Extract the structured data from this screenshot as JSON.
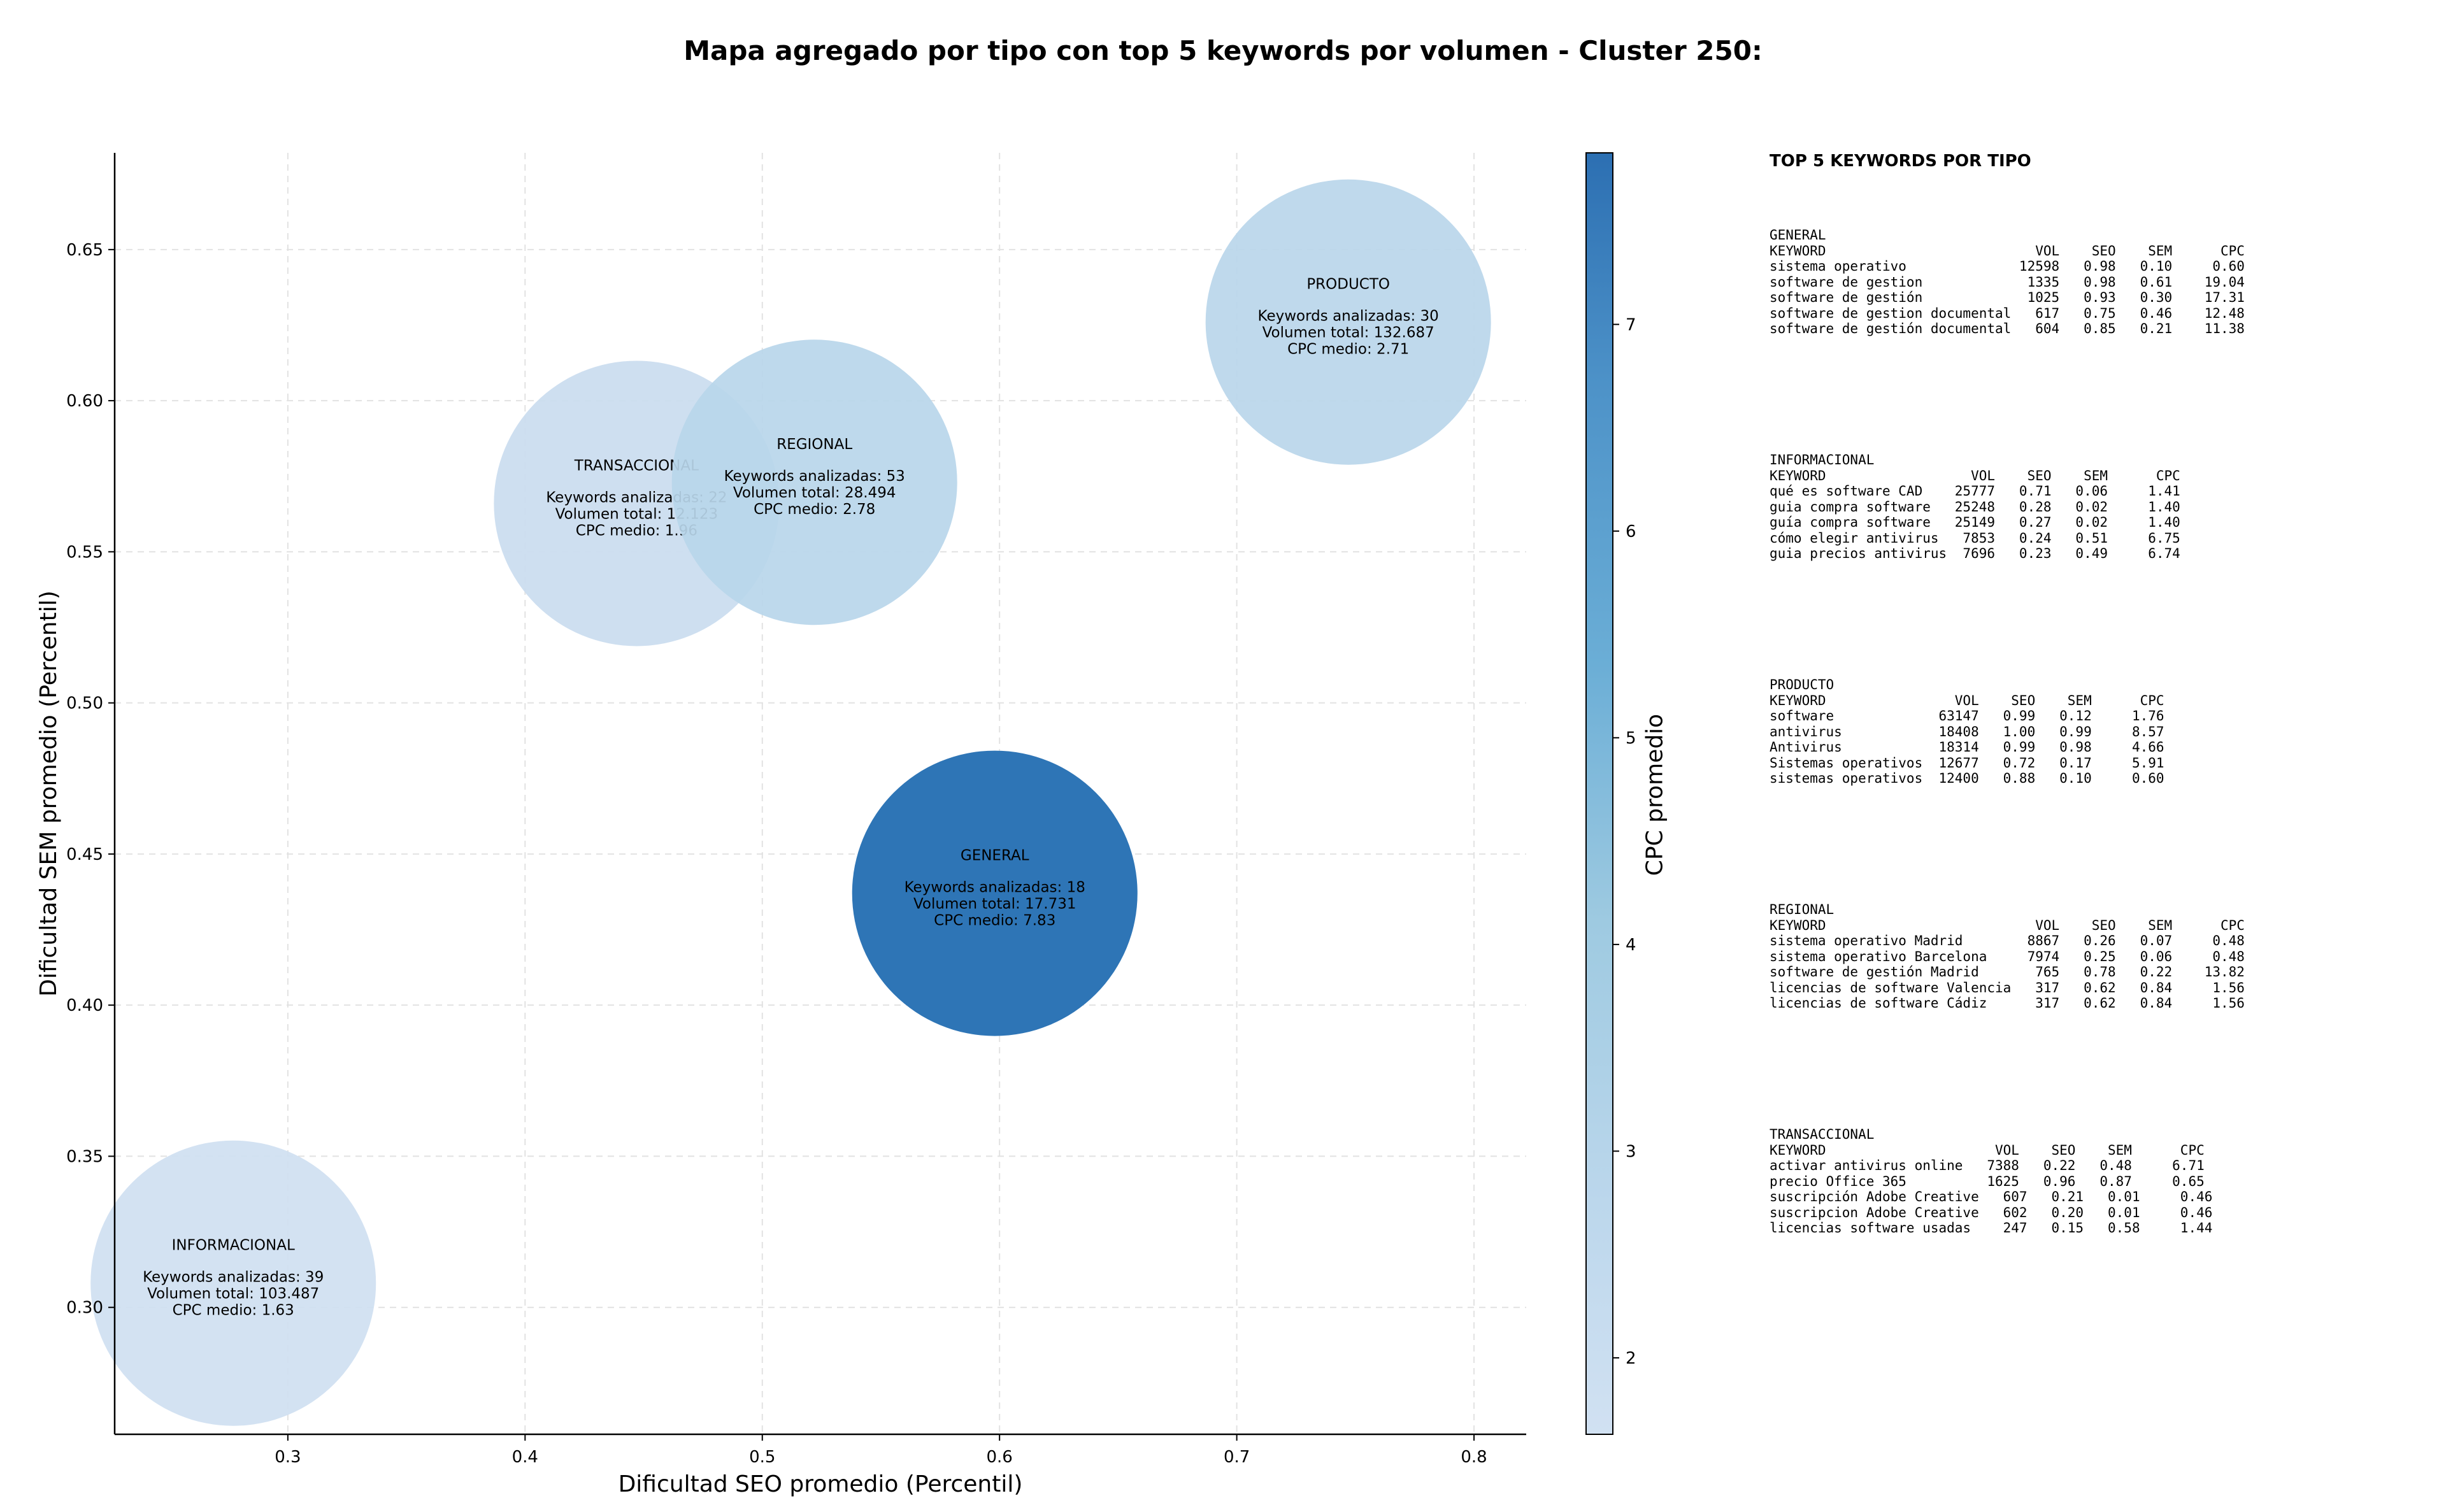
{
  "title": "Mapa agregado por tipo con top 5 keywords por volumen - Cluster 250:",
  "chart_data": {
    "type": "scatter",
    "subtype": "bubble",
    "xlabel": "Dificultad SEO promedio (Percentil)",
    "ylabel": "Dificultad SEM promedio (Percentil)",
    "xlim": [
      0.227,
      0.822
    ],
    "ylim": [
      0.258,
      0.682
    ],
    "xticks": [
      "0.3",
      "0.4",
      "0.5",
      "0.6",
      "0.7",
      "0.8"
    ],
    "yticks": [
      "0.30",
      "0.35",
      "0.40",
      "0.45",
      "0.50",
      "0.55",
      "0.60",
      "0.65"
    ],
    "grid": true,
    "colorbar": {
      "label": "CPC promedio",
      "ticks": [
        "2",
        "3",
        "4",
        "5",
        "6",
        "7"
      ],
      "range": [
        1.63,
        7.83
      ]
    },
    "points": [
      {
        "name": "INFORMACIONAL",
        "x": 0.277,
        "y": 0.308,
        "keywords": "Keywords analizadas: 39",
        "volume": "Volumen total: 103.487",
        "cpc_text": "CPC medio: 1.63",
        "cpc": 1.63,
        "color": "#cfe0f1"
      },
      {
        "name": "TRANSACCIONAL",
        "x": 0.447,
        "y": 0.566,
        "keywords": "Keywords analizadas: 22",
        "volume": "Volumen total: 12.123",
        "cpc_text": "CPC medio: 1.96",
        "cpc": 1.96,
        "color": "#cadcef"
      },
      {
        "name": "REGIONAL",
        "x": 0.522,
        "y": 0.573,
        "keywords": "Keywords analizadas: 53",
        "volume": "Volumen total: 28.494",
        "cpc_text": "CPC medio: 2.78",
        "cpc": 2.78,
        "color": "#b9d6ea"
      },
      {
        "name": "PRODUCTO",
        "x": 0.747,
        "y": 0.626,
        "keywords": "Keywords analizadas: 30",
        "volume": "Volumen total: 132.687",
        "cpc_text": "CPC medio: 2.71",
        "cpc": 2.71,
        "color": "#bad6ea"
      },
      {
        "name": "GENERAL",
        "x": 0.598,
        "y": 0.437,
        "keywords": "Keywords analizadas: 18",
        "volume": "Volumen total: 17.731",
        "cpc_text": "CPC medio: 7.83",
        "cpc": 7.83,
        "color": "#2e75b6"
      }
    ]
  },
  "side_panel": {
    "title": "TOP 5 KEYWORDS POR TIPO",
    "blocks": [
      "GENERAL\nKEYWORD                          VOL    SEO    SEM      CPC\nsistema operativo              12598   0.98   0.10     0.60\nsoftware de gestion             1335   0.98   0.61    19.04\nsoftware de gestión             1025   0.93   0.30    17.31\nsoftware de gestion documental   617   0.75   0.46    12.48\nsoftware de gestión documental   604   0.85   0.21    11.38",
      "INFORMACIONAL\nKEYWORD                  VOL    SEO    SEM      CPC\nqué es software CAD    25777   0.71   0.06     1.41\nguia compra software   25248   0.28   0.02     1.40\nguía compra software   25149   0.27   0.02     1.40\ncómo elegir antivirus   7853   0.24   0.51     6.75\nguia precios antivirus  7696   0.23   0.49     6.74",
      "PRODUCTO\nKEYWORD                VOL    SEO    SEM      CPC\nsoftware             63147   0.99   0.12     1.76\nantivirus            18408   1.00   0.99     8.57\nAntivirus            18314   0.99   0.98     4.66\nSistemas operativos  12677   0.72   0.17     5.91\nsistemas operativos  12400   0.88   0.10     0.60",
      "REGIONAL\nKEYWORD                          VOL    SEO    SEM      CPC\nsistema operativo Madrid        8867   0.26   0.07     0.48\nsistema operativo Barcelona     7974   0.25   0.06     0.48\nsoftware de gestión Madrid       765   0.78   0.22    13.82\nlicencias de software Valencia   317   0.62   0.84     1.56\nlicencias de software Cádiz      317   0.62   0.84     1.56",
      "TRANSACCIONAL\nKEYWORD                     VOL    SEO    SEM      CPC\nactivar antivirus online   7388   0.22   0.48     6.71\nprecio Office 365          1625   0.96   0.87     0.65\nsuscripción Adobe Creative   607   0.21   0.01     0.46\nsuscripcion Adobe Creative   602   0.20   0.01     0.46\nlicencias software usadas    247   0.15   0.58     1.44"
    ]
  }
}
